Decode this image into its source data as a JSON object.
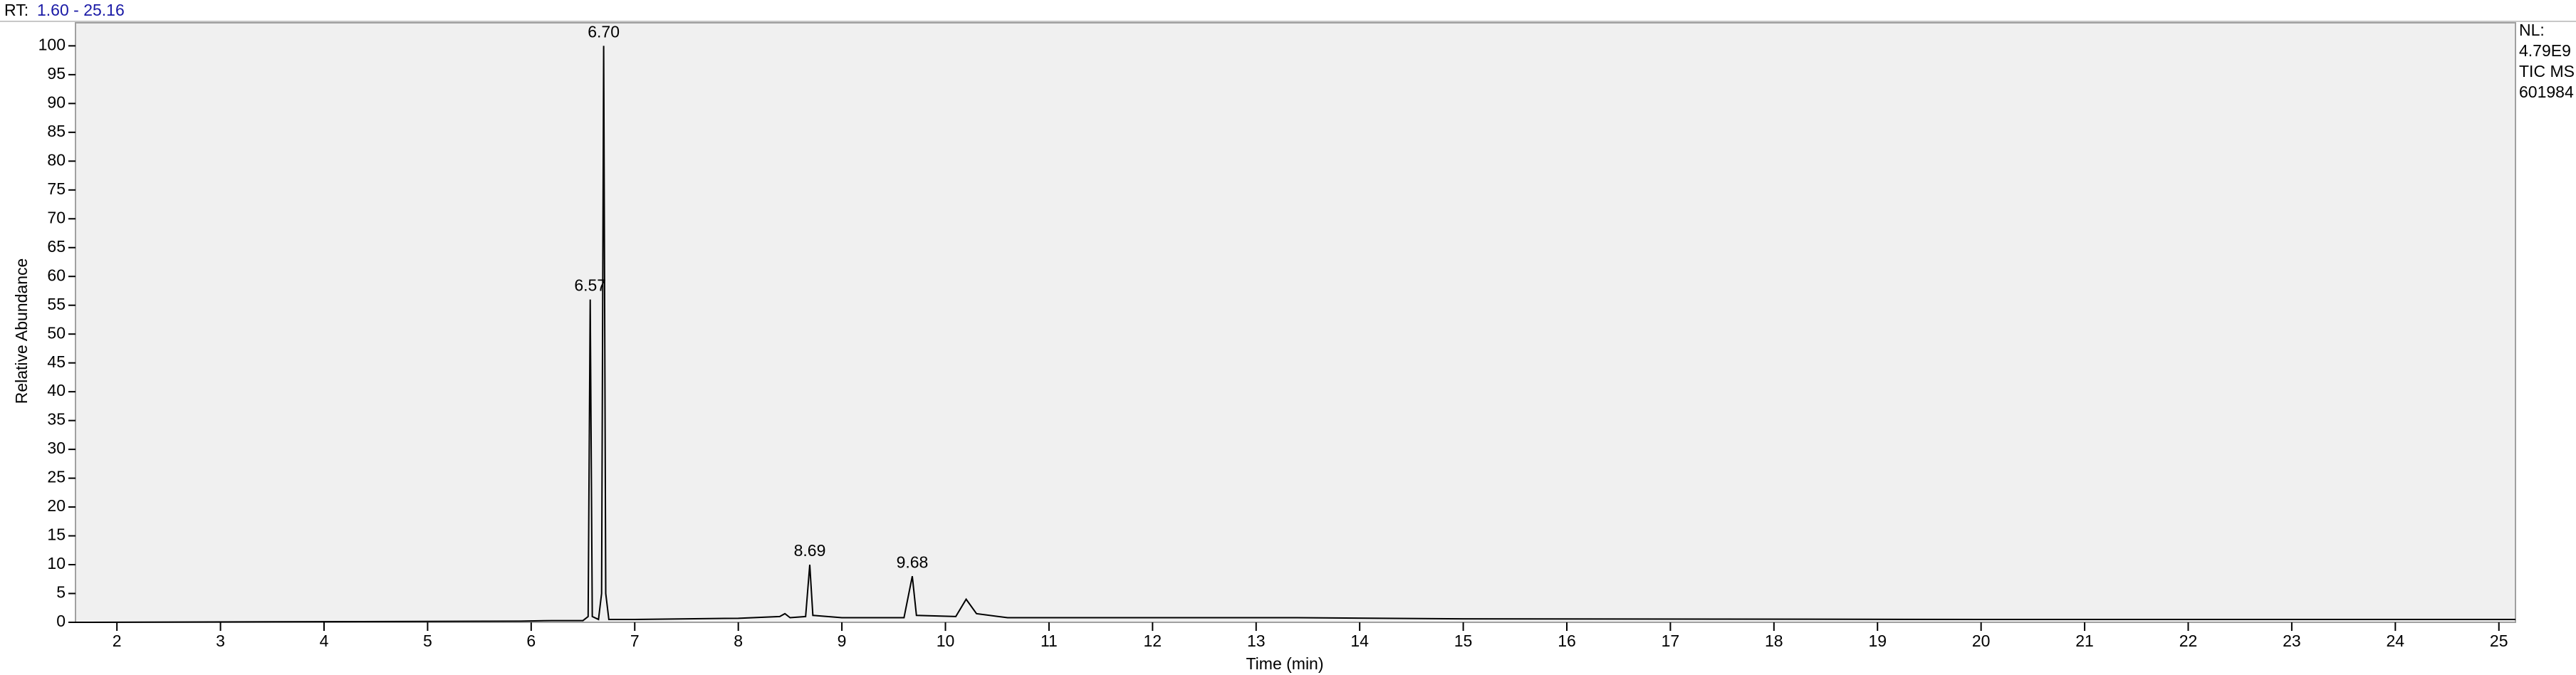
{
  "chart_data": {
    "type": "line",
    "rt_label": "RT:",
    "rt_range": "1.60 - 25.16",
    "side_info": [
      "NL:",
      "4.79E9",
      "TIC  MS",
      "601984"
    ],
    "xlabel": "Time (min)",
    "ylabel": "Relative Abundance",
    "xlim": [
      1.6,
      25.16
    ],
    "ylim": [
      0,
      104
    ],
    "xticks": [
      2,
      3,
      4,
      5,
      6,
      7,
      8,
      9,
      10,
      11,
      12,
      13,
      14,
      15,
      16,
      17,
      18,
      19,
      20,
      21,
      22,
      23,
      24,
      25
    ],
    "yticks": [
      0,
      5,
      10,
      15,
      20,
      25,
      30,
      35,
      40,
      45,
      50,
      55,
      60,
      65,
      70,
      75,
      80,
      85,
      90,
      95,
      100
    ],
    "series": [
      {
        "color": "#000000",
        "x": [
          1.6,
          5.9,
          6.2,
          6.5,
          6.55,
          6.57,
          6.59,
          6.65,
          6.68,
          6.7,
          6.72,
          6.75,
          7.0,
          8.0,
          8.4,
          8.45,
          8.5,
          8.65,
          8.69,
          8.72,
          9.0,
          9.6,
          9.68,
          9.72,
          10.1,
          10.2,
          10.3,
          10.6,
          13.4,
          15,
          20,
          25.16
        ],
        "values": [
          0,
          0.2,
          0.3,
          0.3,
          1,
          56,
          1,
          0.5,
          5,
          100,
          5,
          0.5,
          0.5,
          0.7,
          1.0,
          1.5,
          0.8,
          1,
          10,
          1.2,
          0.8,
          0.8,
          8,
          1.2,
          1,
          4,
          1.5,
          0.8,
          0.8,
          0.6,
          0.5,
          0.5
        ]
      }
    ],
    "annotations": [
      {
        "text": "6.70",
        "x": 6.7,
        "y": 100
      },
      {
        "text": "6.57",
        "x": 6.57,
        "y": 56
      },
      {
        "text": "8.69",
        "x": 8.69,
        "y": 10
      },
      {
        "text": "9.68",
        "x": 9.68,
        "y": 8
      }
    ],
    "plot_background": "#f0f0f0"
  }
}
